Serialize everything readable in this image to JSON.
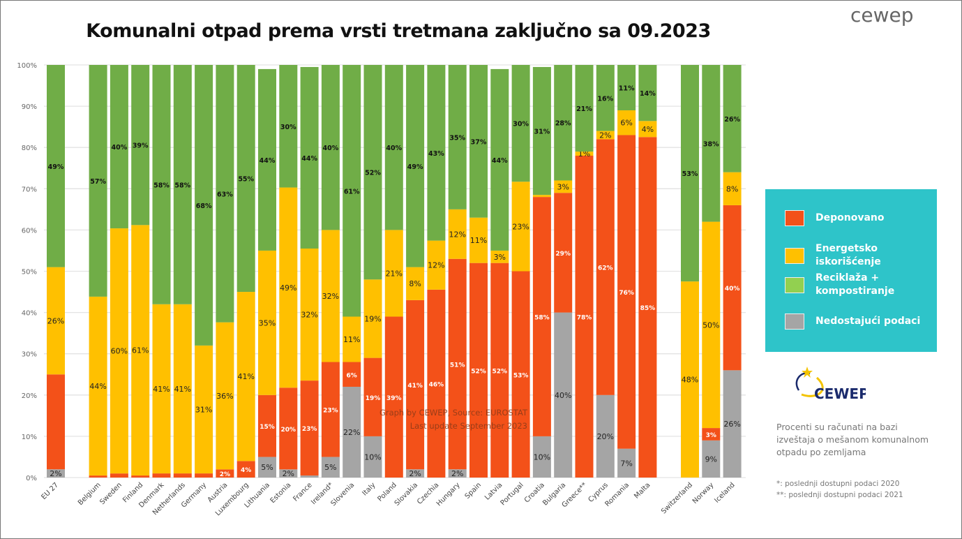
{
  "title": "Komunalni otpad prema vrsti tretmana zaključno sa 09.2023",
  "brand": "cewep",
  "logo_text": "CEWEP",
  "source_lines": [
    "Graph by CEWEP, Source: EUROSTAT",
    "Last update September 2023"
  ],
  "note": "Procenti su računati na bazi izveštaja o mešanom komunalnom otpadu po zemljama",
  "footnotes": [
    "*: poslednji dostupni podaci 2020",
    "**: poslednji dostupni podaci 2021"
  ],
  "chart_data": {
    "type": "bar",
    "stacked": true,
    "ylim": [
      0,
      100
    ],
    "yticks": [
      "0%",
      "10%",
      "20%",
      "30%",
      "40%",
      "50%",
      "60%",
      "70%",
      "80%",
      "90%",
      "100%"
    ],
    "grid": true,
    "legend_position": "right",
    "series": [
      {
        "name": "Nedostajući podaci",
        "color": "#A5A5A5",
        "legend_color": "#A5A5A5"
      },
      {
        "name": "Deponovano",
        "color": "#F35119",
        "legend_color": "#F35119"
      },
      {
        "name": "Energetsko iskorišćenje",
        "color": "#FFC000",
        "legend_color": "#FFC000"
      },
      {
        "name": "Reciklaža + kompostiranje",
        "color": "#70AD47",
        "legend_color": "#92D050"
      }
    ],
    "legend_order": [
      1,
      2,
      3,
      0
    ],
    "categories": [
      {
        "name": "EU 27",
        "slot": 0,
        "values": [
          2,
          23,
          26,
          49
        ],
        "labels": [
          "2%",
          "",
          "26%",
          "49%"
        ]
      },
      {
        "name": "Belgium",
        "slot": 2,
        "values": [
          0,
          0.5,
          44,
          57
        ],
        "labels": [
          "",
          "",
          "44%",
          "57%"
        ]
      },
      {
        "name": "Sweden",
        "slot": 3,
        "values": [
          0,
          1,
          60,
          40
        ],
        "labels": [
          "",
          "",
          "60%",
          "40%"
        ]
      },
      {
        "name": "Finland",
        "slot": 4,
        "values": [
          0,
          0.5,
          61,
          39
        ],
        "labels": [
          "",
          "",
          "61%",
          "39%"
        ]
      },
      {
        "name": "Denmark",
        "slot": 5,
        "values": [
          0,
          1,
          41,
          58
        ],
        "labels": [
          "",
          "",
          "41%",
          "58%"
        ]
      },
      {
        "name": "Netherlands",
        "slot": 6,
        "values": [
          0,
          1,
          41,
          58
        ],
        "labels": [
          "",
          "",
          "41%",
          "58%"
        ]
      },
      {
        "name": "Germany",
        "slot": 7,
        "values": [
          0,
          1,
          31,
          68
        ],
        "labels": [
          "",
          "",
          "31%",
          "68%"
        ]
      },
      {
        "name": "Austria",
        "slot": 8,
        "values": [
          0,
          2,
          36,
          63
        ],
        "labels": [
          "",
          "2%",
          "36%",
          "63%"
        ]
      },
      {
        "name": "Luxembourg",
        "slot": 9,
        "values": [
          0,
          4,
          41,
          55
        ],
        "labels": [
          "",
          "4%",
          "41%",
          "55%"
        ]
      },
      {
        "name": "Lithuania",
        "slot": 10,
        "values": [
          5,
          15,
          35,
          44
        ],
        "labels": [
          "5%",
          "15%",
          "35%",
          "44%"
        ]
      },
      {
        "name": "Estonia",
        "slot": 11,
        "values": [
          2,
          20,
          49,
          30
        ],
        "labels": [
          "2%",
          "20%",
          "49%",
          "30%"
        ]
      },
      {
        "name": "France",
        "slot": 12,
        "values": [
          0.5,
          23,
          32,
          44
        ],
        "labels": [
          "",
          "23%",
          "32%",
          "44%"
        ]
      },
      {
        "name": "Ireland*",
        "slot": 13,
        "values": [
          5,
          23,
          32,
          40
        ],
        "labels": [
          "5%",
          "23%",
          "32%",
          "40%"
        ]
      },
      {
        "name": "Slovenia",
        "slot": 14,
        "values": [
          22,
          6,
          11,
          61
        ],
        "labels": [
          "22%",
          "6%",
          "11%",
          "61%"
        ]
      },
      {
        "name": "Italy",
        "slot": 15,
        "values": [
          10,
          19,
          19,
          52
        ],
        "labels": [
          "10%",
          "19%",
          "19%",
          "52%"
        ]
      },
      {
        "name": "Poland",
        "slot": 16,
        "values": [
          0,
          39,
          21,
          40
        ],
        "labels": [
          "",
          "39%",
          "21%",
          "40%"
        ]
      },
      {
        "name": "Slovakia",
        "slot": 17,
        "values": [
          2,
          41,
          8,
          49
        ],
        "labels": [
          "2%",
          "41%",
          "8%",
          "49%"
        ]
      },
      {
        "name": "Czechia",
        "slot": 18,
        "values": [
          0,
          46,
          12,
          43
        ],
        "labels": [
          "",
          "46%",
          "12%",
          "43%"
        ]
      },
      {
        "name": "Hungary",
        "slot": 19,
        "values": [
          2,
          51,
          12,
          35
        ],
        "labels": [
          "2%",
          "51%",
          "12%",
          "35%"
        ]
      },
      {
        "name": "Spain",
        "slot": 20,
        "values": [
          0,
          52,
          11,
          37
        ],
        "labels": [
          "",
          "52%",
          "11%",
          "37%"
        ]
      },
      {
        "name": "Latvia",
        "slot": 21,
        "values": [
          0,
          52,
          3,
          44
        ],
        "labels": [
          "",
          "52%",
          "3%",
          "44%"
        ]
      },
      {
        "name": "Portugal",
        "slot": 22,
        "values": [
          0,
          53,
          23,
          30
        ],
        "labels": [
          "",
          "53%",
          "23%",
          "30%"
        ]
      },
      {
        "name": "Croatia",
        "slot": 23,
        "values": [
          10,
          58,
          0.5,
          31
        ],
        "labels": [
          "10%",
          "58%",
          "",
          "31%"
        ]
      },
      {
        "name": "Bulgaria",
        "slot": 24,
        "values": [
          40,
          29,
          3,
          28
        ],
        "labels": [
          "40%",
          "29%",
          "3%",
          "28%"
        ]
      },
      {
        "name": "Greece**",
        "slot": 25,
        "values": [
          0,
          78,
          1,
          21
        ],
        "labels": [
          "",
          "78%",
          "1%",
          "21%"
        ]
      },
      {
        "name": "Cyprus",
        "slot": 26,
        "values": [
          20,
          62,
          2,
          16
        ],
        "labels": [
          "20%",
          "62%",
          "2%",
          "16%"
        ]
      },
      {
        "name": "Romania",
        "slot": 27,
        "values": [
          7,
          76,
          6,
          11
        ],
        "labels": [
          "7%",
          "76%",
          "6%",
          "11%"
        ]
      },
      {
        "name": "Malta",
        "slot": 28,
        "values": [
          0,
          85,
          4,
          14
        ],
        "labels": [
          "",
          "85%",
          "4%",
          "14%"
        ]
      },
      {
        "name": "Switzerland",
        "slot": 30,
        "values": [
          0,
          0,
          48,
          53
        ],
        "labels": [
          "",
          "",
          "48%",
          "53%"
        ]
      },
      {
        "name": "Norway",
        "slot": 31,
        "values": [
          9,
          3,
          50,
          38
        ],
        "labels": [
          "9%",
          "3%",
          "50%",
          "38%"
        ]
      },
      {
        "name": "Iceland",
        "slot": 32,
        "values": [
          26,
          40,
          8,
          26
        ],
        "labels": [
          "26%",
          "40%",
          "8%",
          "26%"
        ]
      }
    ]
  }
}
